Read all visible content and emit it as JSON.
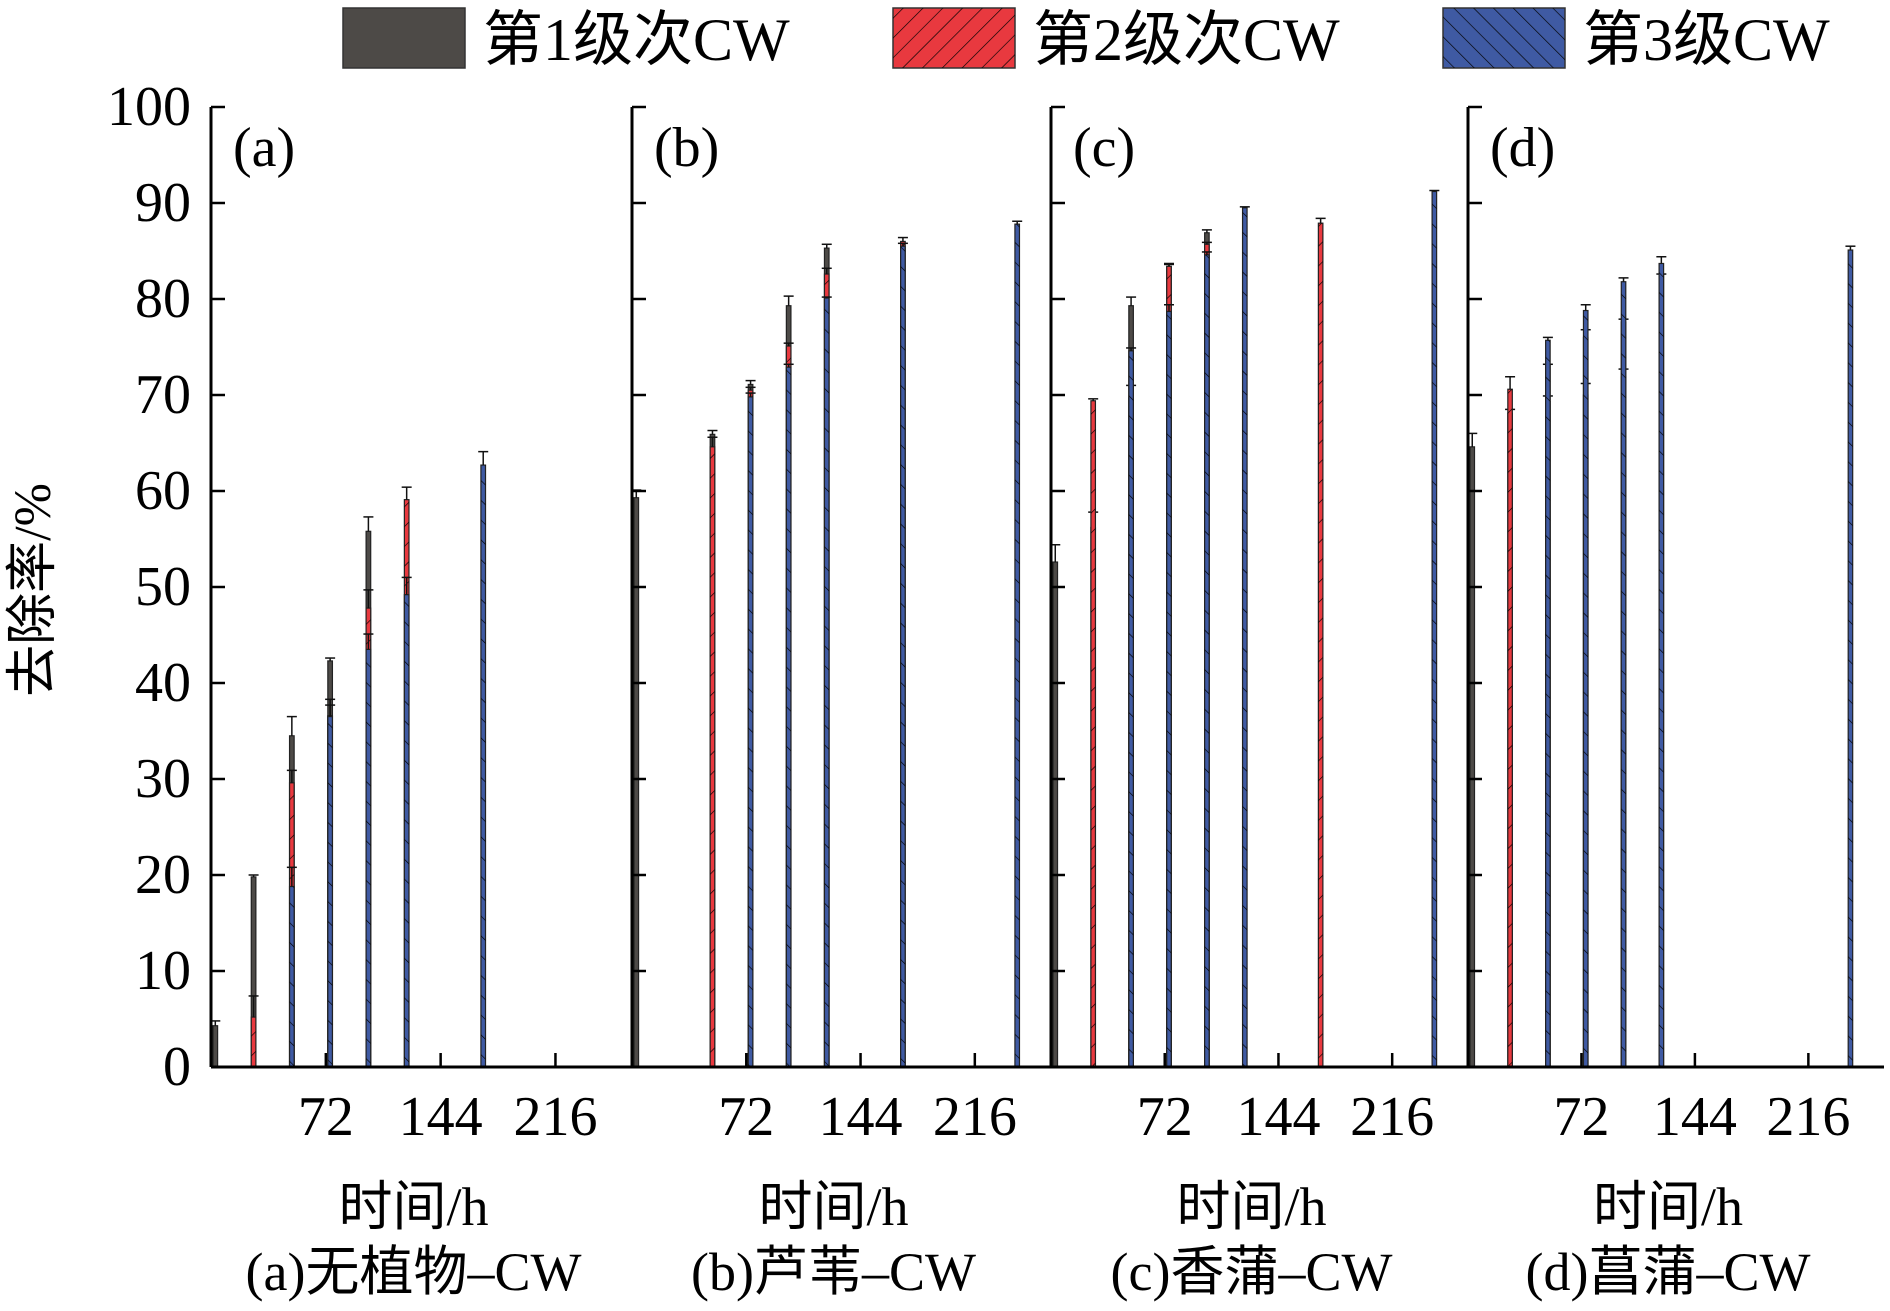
{
  "legend": [
    {
      "label": "第1级次CW",
      "color": "#4d4a47",
      "pattern": "solid"
    },
    {
      "label": "第2级次CW",
      "color": "#e8393f",
      "pattern": "hatch-forward"
    },
    {
      "label": "第3级CW",
      "color": "#3f5aa3",
      "pattern": "hatch-back"
    }
  ],
  "y_axis": {
    "label": "去除率/%",
    "ticks": [
      0,
      10,
      20,
      30,
      40,
      50,
      60,
      70,
      80,
      90,
      100
    ]
  },
  "chart_data": [
    {
      "type": "bar",
      "panel_tag": "(a)",
      "xlabel": "时间/h",
      "caption": "(a)无植物–CW",
      "ylim": [
        0,
        100
      ],
      "x_ticks": [
        72,
        144,
        216
      ],
      "xlim": [
        0,
        264
      ],
      "bar_width_h": 5.4,
      "series": [
        {
          "name": "第1级次CW",
          "x": [
            0,
            24,
            48,
            72,
            96
          ],
          "values": [
            4.3,
            19.8,
            34.5,
            42.3,
            55.8
          ],
          "err": [
            0.5,
            0.2,
            2.0,
            0.3,
            1.5
          ]
        },
        {
          "name": "第2级次CW",
          "x": [
            24,
            48,
            72,
            96,
            120
          ],
          "values": [
            5.2,
            29.6,
            36.6,
            47.8,
            59.1
          ],
          "err": [
            2.2,
            1.3,
            1.7,
            1.9,
            1.3
          ]
        },
        {
          "name": "第3级CW",
          "x": [
            48,
            72,
            96,
            120,
            168
          ],
          "values": [
            18.8,
            36.5,
            43.5,
            49.2,
            62.7
          ],
          "err": [
            2.0,
            1.2,
            1.6,
            1.8,
            1.4
          ]
        }
      ]
    },
    {
      "type": "bar",
      "panel_tag": "(b)",
      "xlabel": "时间/h",
      "caption": "(b)芦苇–CW",
      "ylim": [
        0,
        100
      ],
      "x_ticks": [
        72,
        144,
        216
      ],
      "xlim": [
        0,
        264
      ],
      "bar_width_h": 5.4,
      "series": [
        {
          "name": "第1级次CW",
          "x": [
            0,
            48,
            72,
            96,
            120
          ],
          "values": [
            59.3,
            65.9,
            71.1,
            79.3,
            85.3
          ],
          "err": [
            0.8,
            0.4,
            0.4,
            1.0,
            0.4
          ]
        },
        {
          "name": "第2级次CW",
          "x": [
            48,
            72,
            96,
            120,
            168
          ],
          "values": [
            64.6,
            70.5,
            75.1,
            82.6,
            86.0
          ],
          "err": [
            1.0,
            0.3,
            0.3,
            0.6,
            0.4
          ]
        },
        {
          "name": "第3级CW",
          "x": [
            72,
            96,
            120,
            168,
            240
          ],
          "values": [
            69.8,
            72.9,
            80.1,
            85.5,
            87.8
          ],
          "err": [
            0.4,
            0.3,
            0.1,
            0.3,
            0.3
          ]
        }
      ]
    },
    {
      "type": "bar",
      "panel_tag": "(c)",
      "xlabel": "时间/h",
      "caption": "(c)香蒲–CW",
      "ylim": [
        0,
        100
      ],
      "x_ticks": [
        72,
        144,
        216
      ],
      "xlim": [
        0,
        264
      ],
      "bar_width_h": 5.4,
      "series": [
        {
          "name": "第1级次CW",
          "x": [
            0,
            24,
            48,
            72,
            96
          ],
          "values": [
            52.6,
            56.2,
            79.3,
            83.4,
            86.9
          ],
          "err": [
            1.8,
            1.6,
            0.9,
            0.2,
            0.3
          ]
        },
        {
          "name": "第2级次CW",
          "x": [
            24,
            48,
            72,
            96,
            168
          ],
          "values": [
            69.4,
            69.7,
            83.4,
            85.7,
            87.9
          ],
          "err": [
            0.2,
            1.3,
            0.3,
            0.2,
            0.5
          ]
        },
        {
          "name": "第3级CW",
          "x": [
            48,
            72,
            96,
            120,
            240
          ],
          "values": [
            74.6,
            78.7,
            84.6,
            89.5,
            91.2
          ],
          "err": [
            0.3,
            0.7,
            0.3,
            0.1,
            0.1
          ]
        }
      ]
    },
    {
      "type": "bar",
      "panel_tag": "(d)",
      "xlabel": "时间/h",
      "caption": "(d)菖蒲–CW",
      "ylim": [
        0,
        100
      ],
      "x_ticks": [
        72,
        144,
        216
      ],
      "xlim": [
        0,
        264
      ],
      "bar_width_h": 5.4,
      "series": [
        {
          "name": "第1级次CW",
          "x": [
            0,
            24,
            48,
            72,
            96
          ],
          "values": [
            64.6,
            68.1,
            69.3,
            70.0,
            71.9
          ],
          "err": [
            1.4,
            0.4,
            0.6,
            1.2,
            0.8
          ]
        },
        {
          "name": "第2级次CW",
          "x": [
            24,
            48,
            72,
            96,
            120
          ],
          "values": [
            70.6,
            73.1,
            76.0,
            77.6,
            82.5
          ],
          "err": [
            1.3,
            0.1,
            0.8,
            0.3,
            0.1
          ]
        },
        {
          "name": "第3级CW",
          "x": [
            48,
            72,
            96,
            120,
            240
          ],
          "values": [
            75.7,
            78.8,
            81.8,
            83.7,
            85.1
          ],
          "err": [
            0.3,
            0.6,
            0.4,
            0.7,
            0.4
          ]
        }
      ]
    }
  ]
}
